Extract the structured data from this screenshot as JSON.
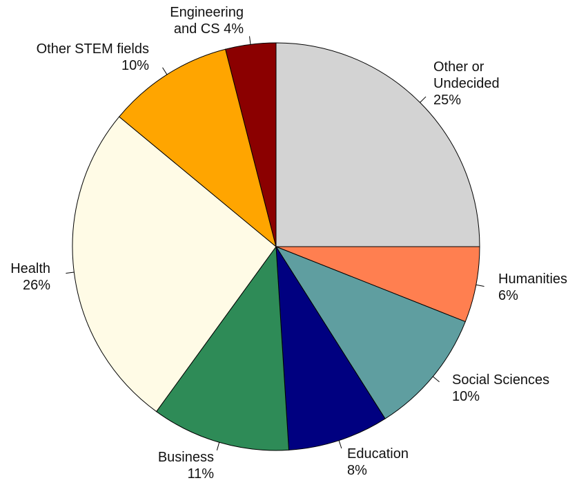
{
  "chart_data": {
    "type": "pie",
    "direction": "clockwise",
    "start": "12 o'clock",
    "slices": [
      {
        "label": [
          "Other or",
          "Undecided",
          "25%"
        ],
        "value": 25,
        "color": "#d3d3d3"
      },
      {
        "label": [
          "Humanities",
          "6%"
        ],
        "value": 6,
        "color": "#ff7f50"
      },
      {
        "label": [
          "Social Sciences",
          "10%"
        ],
        "value": 10,
        "color": "#5f9ea0"
      },
      {
        "label": [
          "Education",
          "8%"
        ],
        "value": 8,
        "color": "#000080"
      },
      {
        "label": [
          "Business",
          "11%"
        ],
        "value": 11,
        "color": "#2e8b57"
      },
      {
        "label": [
          "Health",
          "26%"
        ],
        "value": 26,
        "color": "#fffbe6"
      },
      {
        "label": [
          "Other STEM fields",
          "10%"
        ],
        "value": 10,
        "color": "#ffa500"
      },
      {
        "label": [
          "Engineering",
          "and CS 4%"
        ],
        "value": 4,
        "color": "#8b0000"
      }
    ]
  }
}
